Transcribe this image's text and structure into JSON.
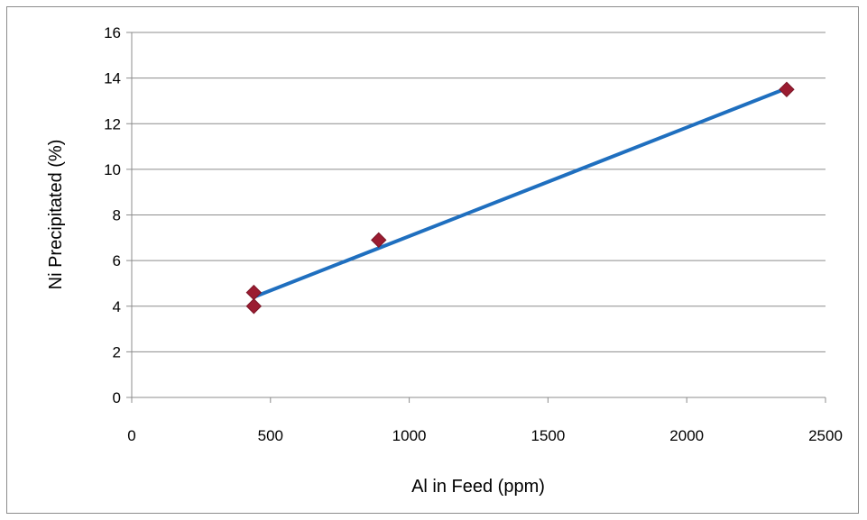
{
  "chart_data": {
    "type": "scatter",
    "xlabel": "Al in Feed (ppm)",
    "ylabel": "Ni Precipitated (%)",
    "xlim": [
      0,
      2500
    ],
    "ylim": [
      0,
      16
    ],
    "xticks": [
      0,
      500,
      1000,
      1500,
      2000,
      2500
    ],
    "yticks": [
      0,
      2,
      4,
      6,
      8,
      10,
      12,
      14,
      16
    ],
    "grid": "horizontal",
    "series": [
      {
        "marker": "diamond",
        "color": "#9b1c31",
        "points": [
          {
            "x": 440,
            "y": 4.6
          },
          {
            "x": 440,
            "y": 4.0
          },
          {
            "x": 890,
            "y": 6.9
          },
          {
            "x": 2360,
            "y": 13.5
          }
        ]
      }
    ],
    "trendline": {
      "type": "linear",
      "color": "#1f6fbf",
      "from": {
        "x": 440,
        "y": 4.4
      },
      "to": {
        "x": 2360,
        "y": 13.55
      }
    }
  }
}
